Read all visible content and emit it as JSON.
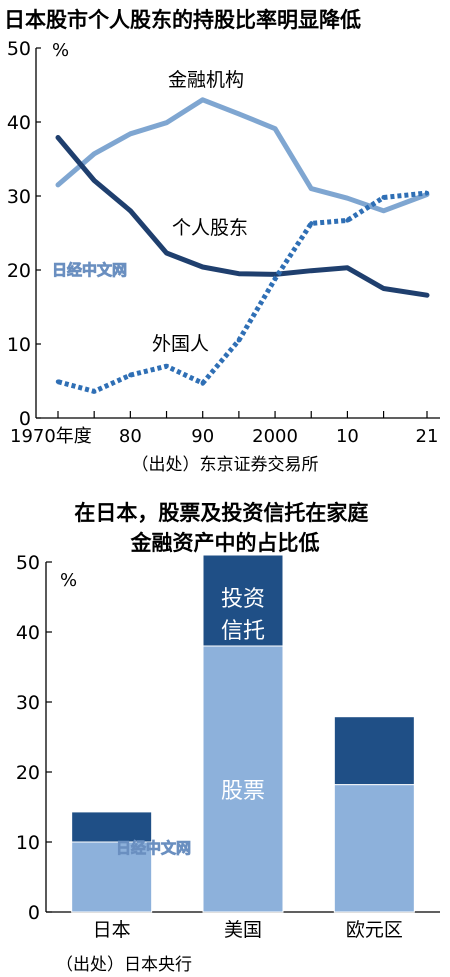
{
  "chart_data": [
    {
      "type": "line",
      "title": "日本股市个人股东的持股比率明显降低",
      "unit_label": "%",
      "x_ticks": [
        "1970年度",
        "80",
        "90",
        "2000",
        "10",
        "21"
      ],
      "x": [
        1970,
        1975,
        1980,
        1985,
        1990,
        1995,
        2000,
        2005,
        2010,
        2015,
        2021
      ],
      "xlim": [
        1970,
        2021
      ],
      "ylim": [
        0,
        50
      ],
      "y_ticks": [
        0,
        10,
        20,
        30,
        40,
        50
      ],
      "grid": false,
      "series": [
        {
          "name": "金融机构",
          "style": "solid",
          "color": "#7fa6d1",
          "values": [
            31.5,
            35.7,
            38.4,
            39.9,
            43.0,
            41.1,
            39.1,
            31.0,
            29.7,
            28.0,
            30.2
          ]
        },
        {
          "name": "个人股东",
          "style": "solid",
          "color": "#1f3f6e",
          "values": [
            37.9,
            32.1,
            28.0,
            22.3,
            20.4,
            19.5,
            19.4,
            19.9,
            20.3,
            17.5,
            16.6
          ]
        },
        {
          "name": "外国人",
          "style": "dotted",
          "color": "#2f6fb5",
          "values": [
            4.9,
            3.6,
            5.8,
            7.0,
            4.7,
            10.5,
            18.8,
            26.3,
            26.7,
            29.8,
            30.4
          ]
        }
      ],
      "source": "（出处）东京证券交易所"
    },
    {
      "type": "bar",
      "stacked": true,
      "title": "在日本，股票及投资信托在家庭\n金融资产中的占比低",
      "unit_label": "%",
      "categories": [
        "日本",
        "美国",
        "欧元区"
      ],
      "ylim": [
        0,
        50
      ],
      "y_ticks": [
        0,
        10,
        20,
        30,
        40,
        50
      ],
      "series": [
        {
          "name": "股票",
          "color": "#8db1db",
          "values": [
            10.0,
            38.0,
            18.2
          ]
        },
        {
          "name": "投资信托",
          "color": "#1f4f86",
          "values": [
            4.3,
            13.0,
            9.7
          ]
        }
      ],
      "source": "（出处）日本央行"
    }
  ],
  "watermark": "日经中文网"
}
